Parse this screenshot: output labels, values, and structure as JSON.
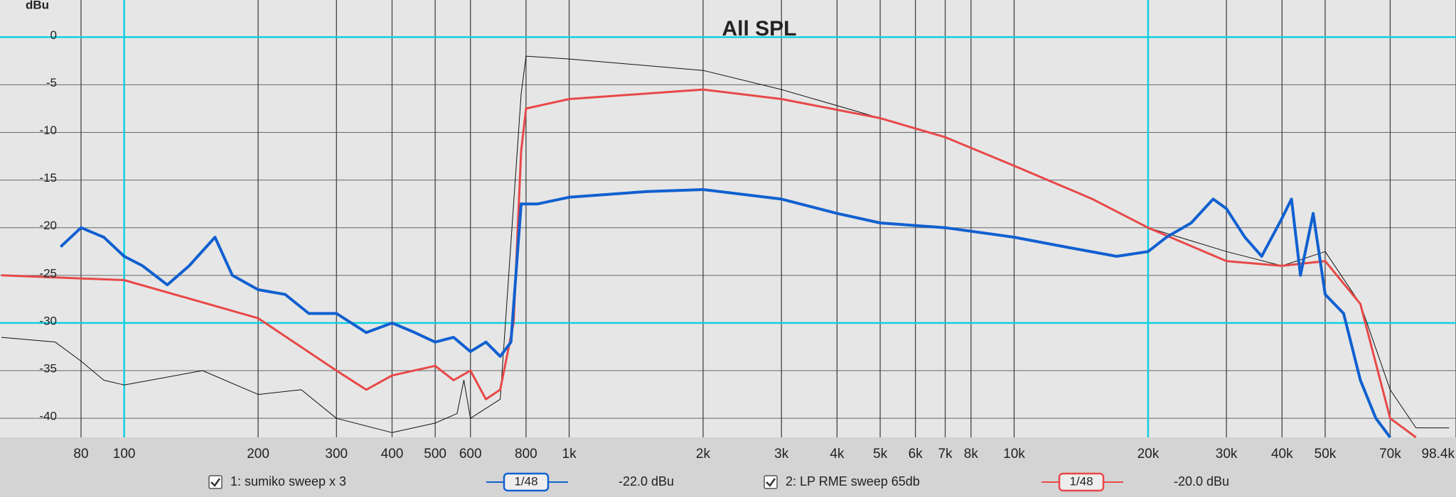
{
  "chart_data": {
    "type": "line",
    "title": "All SPL",
    "y_label": "dBu",
    "x_scale": "log",
    "xlim": [
      52.6,
      98400
    ],
    "ylim": [
      -42,
      3
    ],
    "xticks": [
      80,
      100,
      200,
      300,
      400,
      500,
      600,
      800,
      {
        "value": 1000,
        "label": "1k"
      },
      {
        "value": 2000,
        "label": "2k"
      },
      {
        "value": 3000,
        "label": "3k"
      },
      {
        "value": 4000,
        "label": "4k"
      },
      {
        "value": 5000,
        "label": "5k"
      },
      {
        "value": 6000,
        "label": "6k"
      },
      {
        "value": 7000,
        "label": "7k"
      },
      {
        "value": 8000,
        "label": "8k"
      },
      {
        "value": 10000,
        "label": "10k"
      },
      {
        "value": 20000,
        "label": "20k"
      },
      {
        "value": 30000,
        "label": "30k"
      },
      {
        "value": 40000,
        "label": "40k"
      },
      {
        "value": 50000,
        "label": "50k"
      },
      {
        "value": 70000,
        "label": "70k"
      },
      {
        "value": 98400,
        "label": "98.4k"
      }
    ],
    "yticks": [
      0,
      -5,
      -10,
      -15,
      -20,
      -25,
      -30,
      -35,
      -40
    ],
    "highlight_x": [
      100,
      20000
    ],
    "highlight_y": [
      0,
      -30
    ],
    "highlight_color": "#10d0e0",
    "grid": true,
    "series": [
      {
        "color": "#111111",
        "width": 1,
        "x": [
          53,
          70,
          80,
          90,
          100,
          150,
          200,
          250,
          300,
          400,
          500,
          560,
          580,
          600,
          700,
          780,
          800,
          1000,
          2000,
          3000,
          5000,
          7000,
          10000,
          15000,
          20000,
          30000,
          40000,
          50000,
          60000,
          70000,
          80000,
          95000
        ],
        "values": [
          -31.5,
          -32,
          -34,
          -36,
          -36.5,
          -35,
          -37.5,
          -37,
          -40,
          -41.5,
          -40.5,
          -39.5,
          -36,
          -40,
          -38,
          -6,
          -2,
          -2.3,
          -3.5,
          -5.5,
          -8.5,
          -10.5,
          -13.5,
          -17,
          -20,
          -22.5,
          -24,
          -22.5,
          -28,
          -37,
          -41,
          -41
        ]
      },
      {
        "name": "2: LP RME sweep 65db",
        "color": "#e84848",
        "width": 3,
        "smoothing": "1/48",
        "offset": "-20.0 dBu",
        "x": [
          53,
          100,
          200,
          300,
          350,
          400,
          500,
          550,
          600,
          650,
          700,
          750,
          780,
          800,
          1000,
          2000,
          3000,
          5000,
          7000,
          10000,
          15000,
          20000,
          30000,
          40000,
          50000,
          60000,
          70000,
          80000
        ],
        "values": [
          -25,
          -25.5,
          -29.5,
          -35,
          -37,
          -35.5,
          -34.5,
          -36,
          -35,
          -38,
          -37,
          -30,
          -12,
          -7.5,
          -6.5,
          -5.5,
          -6.5,
          -8.5,
          -10.5,
          -13.5,
          -17,
          -20,
          -23.5,
          -24,
          -23.5,
          -28,
          -40,
          -42
        ]
      },
      {
        "name": "1: sumiko sweep x 3",
        "color": "#1060d0",
        "width": 4,
        "smoothing": "1/48",
        "offset": "-22.0 dBu",
        "x": [
          72,
          80,
          90,
          100,
          110,
          125,
          140,
          160,
          175,
          200,
          230,
          260,
          300,
          350,
          400,
          450,
          500,
          550,
          600,
          650,
          700,
          740,
          780,
          850,
          1000,
          1500,
          2000,
          3000,
          4000,
          5000,
          7000,
          10000,
          13000,
          17000,
          20000,
          22000,
          25000,
          28000,
          30000,
          33000,
          36000,
          40000,
          42000,
          44000,
          47000,
          50000,
          55000,
          60000,
          65000,
          70000
        ],
        "values": [
          -22,
          -20,
          -21,
          -23,
          -24,
          -26,
          -24,
          -21,
          -25,
          -26.5,
          -27,
          -29,
          -29,
          -31,
          -30,
          -31,
          -32,
          -31.5,
          -33,
          -32,
          -33.5,
          -32,
          -17.5,
          -17.5,
          -16.8,
          -16.2,
          -16,
          -17,
          -18.5,
          -19.5,
          -20,
          -21,
          -22,
          -23,
          -22.5,
          -21,
          -19.5,
          -17,
          -18,
          -21,
          -23,
          -19,
          -17,
          -25,
          -18.5,
          -27,
          -29,
          -36,
          -40,
          -42
        ]
      }
    ]
  }
}
